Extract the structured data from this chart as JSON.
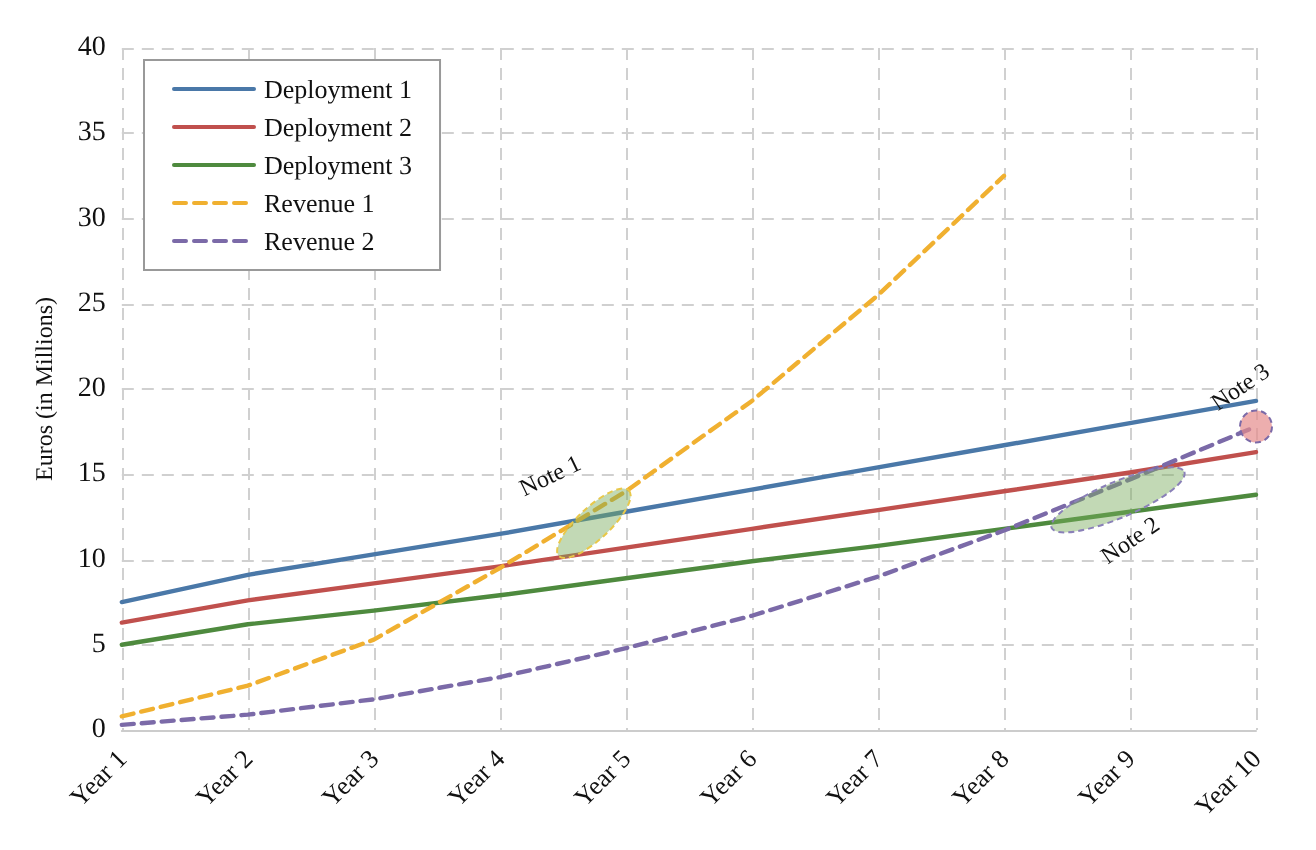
{
  "chart_data": {
    "type": "line",
    "ylabel": "Euros (in Millions)",
    "categories": [
      "Year 1",
      "Year 2",
      "Year 3",
      "Year 4",
      "Year 5",
      "Year 6",
      "Year 7",
      "Year 8",
      "Year 9",
      "Year 10"
    ],
    "ylim": [
      0,
      40
    ],
    "yticks": [
      0,
      5,
      10,
      15,
      20,
      25,
      30,
      35,
      40
    ],
    "grid": true,
    "legend": "top left",
    "marker": "none",
    "series": [
      {
        "name": "Deployment 1",
        "color": "#4a78a8",
        "line_style": "solid",
        "values": [
          7.5,
          9.1,
          10.3,
          11.5,
          12.8,
          14.1,
          15.4,
          16.7,
          18.0,
          19.3
        ]
      },
      {
        "name": "Deployment 2",
        "color": "#c0504d",
        "line_style": "solid",
        "values": [
          6.3,
          7.6,
          8.6,
          9.6,
          10.7,
          11.8,
          12.9,
          14.0,
          15.1,
          16.3
        ]
      },
      {
        "name": "Deployment 3",
        "color": "#4e8a3e",
        "line_style": "solid",
        "values": [
          5.0,
          6.2,
          7.0,
          7.9,
          8.9,
          9.9,
          10.8,
          11.8,
          12.8,
          13.8
        ]
      },
      {
        "name": "Revenue 1",
        "color": "#f0b030",
        "line_style": "dashed",
        "values": [
          0.8,
          2.6,
          5.3,
          9.5,
          14.0,
          19.3,
          25.5,
          32.5,
          null,
          null
        ]
      },
      {
        "name": "Revenue 2",
        "color": "#7b6aa8",
        "line_style": "dashed",
        "values": [
          0.3,
          0.9,
          1.8,
          3.1,
          4.8,
          6.7,
          9.0,
          11.7,
          14.7,
          17.8
        ]
      }
    ],
    "annotations": [
      {
        "text": "Note 1",
        "x": "Year 5",
        "y": 14.0
      },
      {
        "text": "Note 2",
        "x": "Year 9",
        "y": 13.5
      },
      {
        "text": "Note 3",
        "x": "Year 10",
        "y": 17.8
      }
    ]
  }
}
